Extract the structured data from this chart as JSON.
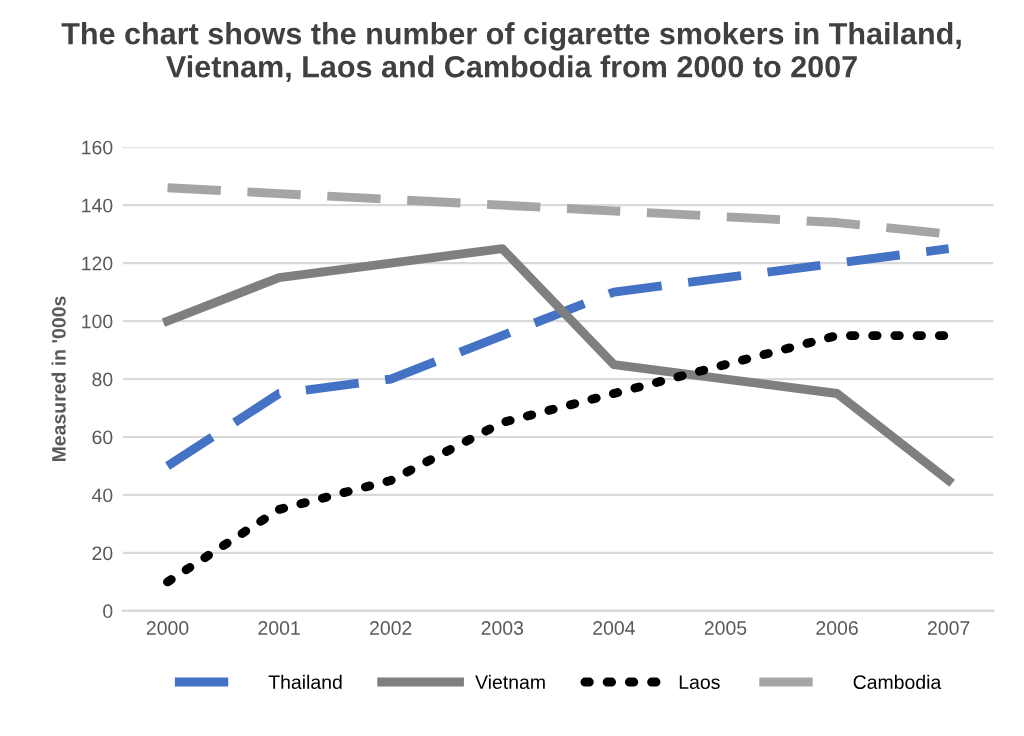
{
  "chart_data": {
    "type": "line",
    "title": "The chart shows the number of cigarette smokers in Thailand,\nVietnam, Laos and Cambodia from 2000 to 2007",
    "ylabel": "Measured in '000s",
    "categories": [
      "2000",
      "2001",
      "2002",
      "2003",
      "2004",
      "2005",
      "2006",
      "2007"
    ],
    "series": [
      {
        "name": "Thailand",
        "color": "#4472c4",
        "line_style": "dashed",
        "values": [
          50,
          75,
          80,
          95,
          110,
          115,
          120,
          125
        ]
      },
      {
        "name": "Vietnam",
        "color": "#7f7f7f",
        "line_style": "solid",
        "values": [
          100,
          115,
          120,
          125,
          85,
          80,
          75,
          45
        ]
      },
      {
        "name": "Laos",
        "color": "#000000",
        "line_style": "dotted",
        "values": [
          10,
          35,
          45,
          65,
          75,
          85,
          95,
          95
        ]
      },
      {
        "name": "Cambodia",
        "color": "#a5a5a5",
        "line_style": "dashed",
        "values": [
          146,
          144,
          142,
          140,
          138,
          136,
          134,
          130
        ]
      }
    ],
    "ylim": [
      0,
      160
    ],
    "yticks": [
      0,
      20,
      40,
      60,
      80,
      100,
      120,
      140,
      160
    ],
    "grid": "y",
    "legend": "bottom",
    "marker": "none"
  }
}
